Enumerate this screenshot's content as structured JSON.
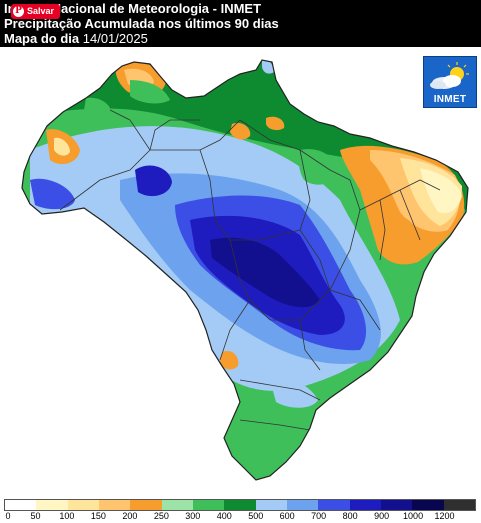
{
  "header": {
    "line1_prefix": "In",
    "line1": "Nacional de Meteorologia - INMET",
    "line2": "Precipitação Acumulada nos últimos 90 dias",
    "line3_label": "Mapa do dia",
    "line3_date": "14/01/2025"
  },
  "overlay": {
    "save_label": "Salvar",
    "pin_glyph": "P"
  },
  "logo": {
    "text": "INMET",
    "color": "#1a66c8"
  },
  "legend": {
    "ticks": [
      "0",
      "50",
      "100",
      "150",
      "200",
      "250",
      "300",
      "400",
      "500",
      "600",
      "700",
      "800",
      "900",
      "1000",
      "1200"
    ],
    "colors": [
      "#ffffff",
      "#fff6c4",
      "#ffe59c",
      "#ffc46e",
      "#f79d2e",
      "#9de3a8",
      "#3fbf5a",
      "#0e8a31",
      "#a4cbf5",
      "#6da3ee",
      "#3b4fe6",
      "#1e1bbf",
      "#12108f",
      "#08064f",
      "#2f2f2f"
    ]
  },
  "colors": {
    "border": "#333333",
    "ocean": "#ffffff"
  }
}
